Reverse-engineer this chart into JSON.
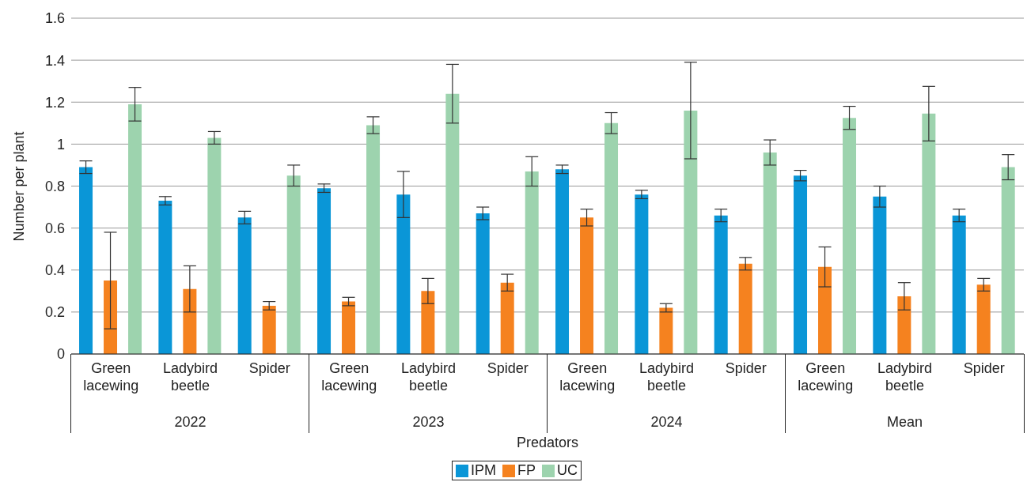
{
  "chart_data": {
    "type": "bar",
    "xlabel": "Predators",
    "ylabel": "Number per plant",
    "categories": [
      "Green lacewing",
      "Ladybird beetle",
      "Spider",
      "Green lacewing",
      "Ladybird beetle",
      "Spider",
      "Green lacewing",
      "Ladybird beetle",
      "Spider",
      "Green lacewing",
      "Ladybird beetle",
      "Spider"
    ],
    "annotations": [
      "2022",
      "2023",
      "2024",
      "Mean"
    ],
    "series": [
      {
        "name": "IPM",
        "color": "#0a96d7",
        "values": [
          0.89,
          0.73,
          0.65,
          0.79,
          0.76,
          0.67,
          0.88,
          0.76,
          0.66,
          0.85,
          0.75,
          0.66
        ],
        "errors": [
          0.03,
          0.02,
          0.03,
          0.02,
          0.11,
          0.03,
          0.02,
          0.02,
          0.03,
          0.025,
          0.05,
          0.03
        ]
      },
      {
        "name": "FP",
        "color": "#f5821f",
        "values": [
          0.35,
          0.31,
          0.23,
          0.25,
          0.3,
          0.34,
          0.65,
          0.22,
          0.43,
          0.415,
          0.275,
          0.33
        ],
        "errors": [
          0.23,
          0.11,
          0.02,
          0.02,
          0.06,
          0.04,
          0.04,
          0.02,
          0.03,
          0.095,
          0.065,
          0.03
        ]
      },
      {
        "name": "UC",
        "color": "#9dd3ae",
        "values": [
          1.19,
          1.03,
          0.85,
          1.09,
          1.24,
          0.87,
          1.1,
          1.16,
          0.96,
          1.125,
          1.145,
          0.89
        ],
        "errors": [
          0.08,
          0.03,
          0.05,
          0.04,
          0.14,
          0.07,
          0.05,
          0.23,
          0.06,
          0.055,
          0.13,
          0.06
        ]
      }
    ],
    "ylim": [
      0,
      1.6
    ],
    "yticks": [
      0,
      0.2,
      0.4,
      0.6,
      0.8,
      1,
      1.2,
      1.4,
      1.6
    ],
    "grid": "y",
    "legend": "bottom"
  }
}
